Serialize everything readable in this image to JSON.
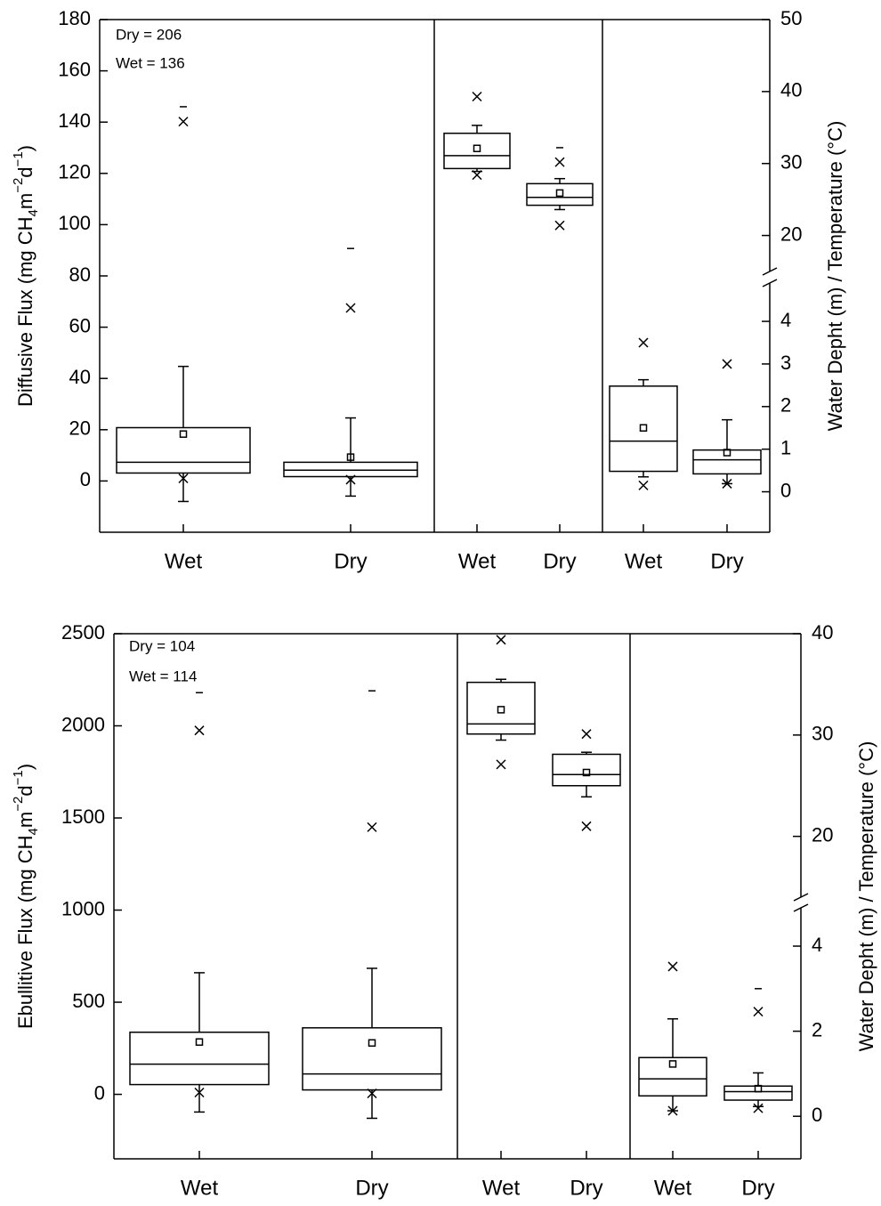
{
  "chart_data": [
    {
      "type": "box",
      "y_label": [
        {
          "text": "Diffusive Flux (mg CH"
        },
        {
          "text": "4",
          "script": "sub"
        },
        {
          "text": "m"
        },
        {
          "text": "−2",
          "script": "sup"
        },
        {
          "text": "d"
        },
        {
          "text": "−1",
          "script": "sup"
        },
        {
          "text": ")"
        }
      ],
      "y2_label": "Water Depht (m) / Temperature (°C)",
      "annotations": [
        "Dry = 206",
        "Wet = 136"
      ],
      "ylim": [
        -20,
        180
      ],
      "yticks": [
        0,
        20,
        40,
        60,
        80,
        100,
        120,
        140,
        160,
        180
      ],
      "y2lim": [
        15,
        50
      ],
      "y2ticks": [
        20,
        30,
        40,
        50
      ],
      "y3lim": [
        -0.95,
        4.9
      ],
      "y3ticks": [
        0,
        1,
        2,
        3,
        4
      ],
      "color": "#000000",
      "groups": [
        {
          "axis": "y",
          "categories": [
            "Wet",
            "Dry"
          ],
          "boxes": [
            {
              "q1": 3.1,
              "median": 7.3,
              "q3": 20.8,
              "whisker_low": -8,
              "whisker_high": 44.7,
              "mean": 18.3,
              "p1": 1,
              "p99": 140.2,
              "max": 146
            },
            {
              "q1": 1.7,
              "median": 4.2,
              "q3": 7.3,
              "whisker_low": -5.9,
              "whisker_high": 24.6,
              "mean": 9.3,
              "p1": 0.5,
              "p99": 67.5,
              "max": 90.7
            }
          ]
        },
        {
          "axis": "y2",
          "categories": [
            "Wet",
            "Dry"
          ],
          "boxes": [
            {
              "q1": 29.3,
              "median": 31.1,
              "q3": 34.2,
              "whisker_low": 28.9,
              "whisker_high": 35.3,
              "mean": 32.1,
              "p1": 28.4,
              "p99": 39.3
            },
            {
              "q1": 24.2,
              "median": 25.3,
              "q3": 27.2,
              "whisker_low": 23.6,
              "whisker_high": 27.9,
              "mean": 25.9,
              "p1": 21.4,
              "p99": 30.2,
              "max": 32.2
            }
          ]
        },
        {
          "axis": "y3",
          "categories": [
            "Wet",
            "Dry"
          ],
          "boxes": [
            {
              "q1": 0.48,
              "median": 1.19,
              "q3": 2.48,
              "whisker_low": 0.35,
              "whisker_high": 2.63,
              "mean": 1.5,
              "p1": 0.15,
              "p99": 3.5
            },
            {
              "q1": 0.42,
              "median": 0.75,
              "q3": 0.98,
              "whisker_low": 0.19,
              "whisker_high": 1.69,
              "mean": 0.92,
              "p1": 0.19,
              "p99": 3.0
            }
          ]
        }
      ]
    },
    {
      "type": "box",
      "y_label": [
        {
          "text": "Ebullitive Flux (mg CH"
        },
        {
          "text": "4",
          "script": "sub"
        },
        {
          "text": "m"
        },
        {
          "text": "−2",
          "script": "sup"
        },
        {
          "text": "d"
        },
        {
          "text": "−1",
          "script": "sup"
        },
        {
          "text": ")"
        }
      ],
      "y2_label": "Water Depht (m) / Temperature (°C)",
      "annotations": [
        "Dry = 104",
        "Wet = 114"
      ],
      "ylim": [
        -350,
        2500
      ],
      "yticks": [
        0,
        500,
        1000,
        1500,
        2000,
        2500
      ],
      "y2lim": [
        14,
        40
      ],
      "y2ticks": [
        20,
        30,
        40
      ],
      "y3lim": [
        -1,
        4.9
      ],
      "y3ticks": [
        0,
        2,
        4
      ],
      "color": "#000000",
      "groups": [
        {
          "axis": "y",
          "categories": [
            "Wet",
            "Dry"
          ],
          "boxes": [
            {
              "q1": 53,
              "median": 164,
              "q3": 337,
              "whisker_low": -96,
              "whisker_high": 660,
              "mean": 284,
              "p1": 10,
              "p99": 1975,
              "max": 2180
            },
            {
              "q1": 24,
              "median": 111,
              "q3": 361,
              "whisker_low": -130,
              "whisker_high": 684,
              "mean": 279,
              "p1": 5,
              "p99": 1450,
              "max": 2190
            }
          ]
        },
        {
          "axis": "y2",
          "categories": [
            "Wet",
            "Dry"
          ],
          "boxes": [
            {
              "q1": 30.1,
              "median": 31.1,
              "q3": 35.2,
              "whisker_low": 29.5,
              "whisker_high": 35.5,
              "mean": 32.5,
              "p1": 27.1,
              "p99": 39.4
            },
            {
              "q1": 25.0,
              "median": 26.1,
              "q3": 28.1,
              "whisker_low": 23.9,
              "whisker_high": 28.3,
              "mean": 26.3,
              "p1": 21.0,
              "p99": 30.1
            }
          ]
        },
        {
          "axis": "y3",
          "categories": [
            "Wet",
            "Dry"
          ],
          "boxes": [
            {
              "q1": 0.48,
              "median": 0.88,
              "q3": 1.38,
              "whisker_low": 0.13,
              "whisker_high": 2.29,
              "mean": 1.23,
              "p1": 0.13,
              "p99": 3.52
            },
            {
              "q1": 0.38,
              "median": 0.58,
              "q3": 0.71,
              "whisker_low": 0.23,
              "whisker_high": 1.02,
              "mean": 0.65,
              "p1": 0.19,
              "p99": 2.46,
              "max": 3.0
            }
          ]
        }
      ]
    }
  ]
}
